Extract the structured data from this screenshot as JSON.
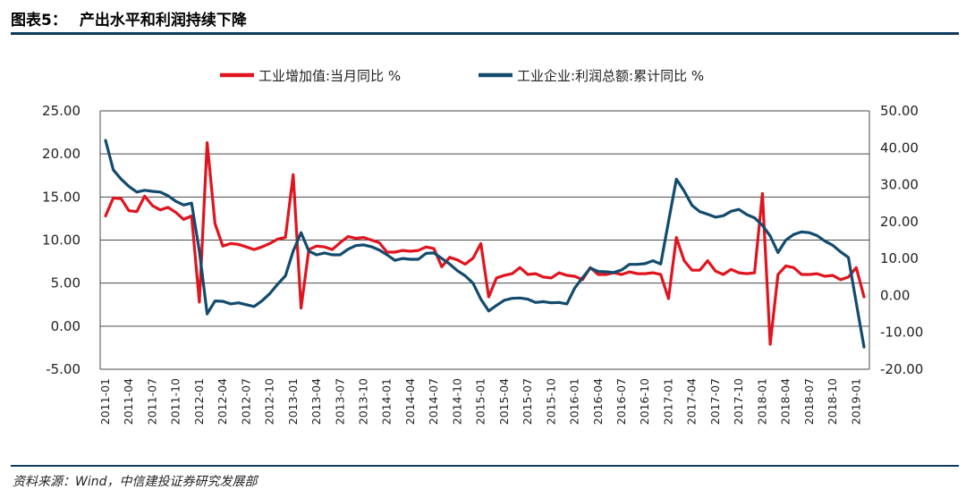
{
  "figure": {
    "label": "图表5：",
    "title": "产出水平和利润持续下降",
    "source": "资料来源：Wind，中信建投证券研究发展部"
  },
  "chart_data": {
    "type": "line",
    "legend_position": "top-center",
    "grid": "horizontal",
    "y_left": {
      "range": [
        -5,
        25
      ],
      "ticks": [
        "25.00",
        "20.00",
        "15.00",
        "10.00",
        "5.00",
        "0.00",
        "-5.00"
      ]
    },
    "y_right": {
      "range": [
        -20,
        50
      ],
      "ticks": [
        "50.00",
        "40.00",
        "30.00",
        "20.00",
        "10.00",
        "0.00",
        "-10.00",
        "-20.00"
      ]
    },
    "x_ticks": [
      "2011-01",
      "2011-04",
      "2011-07",
      "2011-10",
      "2012-01",
      "2012-04",
      "2012-07",
      "2012-10",
      "2013-01",
      "2013-04",
      "2013-07",
      "2013-10",
      "2014-01",
      "2014-04",
      "2014-07",
      "2014-10",
      "2015-01",
      "2015-04",
      "2015-07",
      "2015-10",
      "2016-01",
      "2016-04",
      "2016-07",
      "2016-10",
      "2017-01",
      "2017-04",
      "2017-07",
      "2017-10",
      "2018-01",
      "2018-04",
      "2018-07",
      "2018-10",
      "2019-01"
    ],
    "series": [
      {
        "name": "工业增加值:当月同比 %",
        "axis": "left",
        "color": "#e0141e",
        "points": [
          [
            "2011-01",
            12.8
          ],
          [
            "2011-02",
            14.9
          ],
          [
            "2011-03",
            14.8
          ],
          [
            "2011-04",
            13.4
          ],
          [
            "2011-05",
            13.3
          ],
          [
            "2011-06",
            15.1
          ],
          [
            "2011-07",
            14.0
          ],
          [
            "2011-08",
            13.5
          ],
          [
            "2011-09",
            13.8
          ],
          [
            "2011-10",
            13.2
          ],
          [
            "2011-11",
            12.4
          ],
          [
            "2011-12",
            12.8
          ],
          [
            "2012-01",
            2.8
          ],
          [
            "2012-02",
            21.3
          ],
          [
            "2012-03",
            11.9
          ],
          [
            "2012-04",
            9.3
          ],
          [
            "2012-05",
            9.6
          ],
          [
            "2012-06",
            9.5
          ],
          [
            "2012-07",
            9.2
          ],
          [
            "2012-08",
            8.9
          ],
          [
            "2012-09",
            9.2
          ],
          [
            "2012-10",
            9.6
          ],
          [
            "2012-11",
            10.1
          ],
          [
            "2012-12",
            10.3
          ],
          [
            "2013-01",
            17.6
          ],
          [
            "2013-02",
            2.1
          ],
          [
            "2013-03",
            8.9
          ],
          [
            "2013-04",
            9.3
          ],
          [
            "2013-05",
            9.2
          ],
          [
            "2013-06",
            8.9
          ],
          [
            "2013-07",
            9.7
          ],
          [
            "2013-08",
            10.4
          ],
          [
            "2013-09",
            10.2
          ],
          [
            "2013-10",
            10.3
          ],
          [
            "2013-11",
            10.0
          ],
          [
            "2013-12",
            9.7
          ],
          [
            "2014-01",
            8.6
          ],
          [
            "2014-02",
            8.6
          ],
          [
            "2014-03",
            8.8
          ],
          [
            "2014-04",
            8.7
          ],
          [
            "2014-05",
            8.8
          ],
          [
            "2014-06",
            9.2
          ],
          [
            "2014-07",
            9.0
          ],
          [
            "2014-08",
            6.9
          ],
          [
            "2014-09",
            8.0
          ],
          [
            "2014-10",
            7.7
          ],
          [
            "2014-11",
            7.2
          ],
          [
            "2014-12",
            7.9
          ],
          [
            "2015-01",
            9.6
          ],
          [
            "2015-02",
            3.4
          ],
          [
            "2015-03",
            5.6
          ],
          [
            "2015-04",
            5.9
          ],
          [
            "2015-05",
            6.1
          ],
          [
            "2015-06",
            6.8
          ],
          [
            "2015-07",
            6.0
          ],
          [
            "2015-08",
            6.1
          ],
          [
            "2015-09",
            5.7
          ],
          [
            "2015-10",
            5.6
          ],
          [
            "2015-11",
            6.2
          ],
          [
            "2015-12",
            5.9
          ],
          [
            "2016-01",
            5.8
          ],
          [
            "2016-02",
            5.4
          ],
          [
            "2016-03",
            6.8
          ],
          [
            "2016-04",
            6.0
          ],
          [
            "2016-05",
            6.0
          ],
          [
            "2016-06",
            6.2
          ],
          [
            "2016-07",
            6.0
          ],
          [
            "2016-08",
            6.3
          ],
          [
            "2016-09",
            6.1
          ],
          [
            "2016-10",
            6.1
          ],
          [
            "2016-11",
            6.2
          ],
          [
            "2016-12",
            6.0
          ],
          [
            "2017-01",
            3.2
          ],
          [
            "2017-02",
            10.3
          ],
          [
            "2017-03",
            7.6
          ],
          [
            "2017-04",
            6.5
          ],
          [
            "2017-05",
            6.5
          ],
          [
            "2017-06",
            7.6
          ],
          [
            "2017-07",
            6.4
          ],
          [
            "2017-08",
            6.0
          ],
          [
            "2017-09",
            6.6
          ],
          [
            "2017-10",
            6.2
          ],
          [
            "2017-11",
            6.1
          ],
          [
            "2017-12",
            6.2
          ],
          [
            "2018-01",
            15.4
          ],
          [
            "2018-02",
            -2.1
          ],
          [
            "2018-03",
            6.0
          ],
          [
            "2018-04",
            7.0
          ],
          [
            "2018-05",
            6.8
          ],
          [
            "2018-06",
            6.0
          ],
          [
            "2018-07",
            6.0
          ],
          [
            "2018-08",
            6.1
          ],
          [
            "2018-09",
            5.8
          ],
          [
            "2018-10",
            5.9
          ],
          [
            "2018-11",
            5.4
          ],
          [
            "2018-12",
            5.7
          ],
          [
            "2019-01",
            6.8
          ],
          [
            "2019-02",
            3.4
          ]
        ]
      },
      {
        "name": "工业企业:利润总额:累计同比 %",
        "axis": "right",
        "color": "#134b6e",
        "points": [
          [
            "2011-01",
            42.0
          ],
          [
            "2011-02",
            34.0
          ],
          [
            "2011-03",
            31.5
          ],
          [
            "2011-04",
            29.5
          ],
          [
            "2011-05",
            28.0
          ],
          [
            "2011-06",
            28.5
          ],
          [
            "2011-07",
            28.2
          ],
          [
            "2011-08",
            28.0
          ],
          [
            "2011-09",
            27.0
          ],
          [
            "2011-10",
            25.5
          ],
          [
            "2011-11",
            24.5
          ],
          [
            "2011-12",
            25.0
          ],
          [
            "2012-01",
            12.0
          ],
          [
            "2012-02",
            -5.0
          ],
          [
            "2012-03",
            -1.5
          ],
          [
            "2012-04",
            -1.6
          ],
          [
            "2012-05",
            -2.3
          ],
          [
            "2012-06",
            -2.0
          ],
          [
            "2012-07",
            -2.5
          ],
          [
            "2012-08",
            -3.0
          ],
          [
            "2012-09",
            -1.5
          ],
          [
            "2012-10",
            0.5
          ],
          [
            "2012-11",
            3.0
          ],
          [
            "2012-12",
            5.3
          ],
          [
            "2013-01",
            12.0
          ],
          [
            "2013-02",
            17.0
          ],
          [
            "2013-03",
            12.0
          ],
          [
            "2013-04",
            11.0
          ],
          [
            "2013-05",
            11.5
          ],
          [
            "2013-06",
            11.0
          ],
          [
            "2013-07",
            11.0
          ],
          [
            "2013-08",
            12.5
          ],
          [
            "2013-09",
            13.5
          ],
          [
            "2013-10",
            13.7
          ],
          [
            "2013-11",
            13.2
          ],
          [
            "2013-12",
            12.3
          ],
          [
            "2014-01",
            11.0
          ],
          [
            "2014-02",
            9.5
          ],
          [
            "2014-03",
            10.0
          ],
          [
            "2014-04",
            9.8
          ],
          [
            "2014-05",
            9.8
          ],
          [
            "2014-06",
            11.4
          ],
          [
            "2014-07",
            11.5
          ],
          [
            "2014-08",
            10.0
          ],
          [
            "2014-09",
            8.5
          ],
          [
            "2014-10",
            6.7
          ],
          [
            "2014-11",
            5.3
          ],
          [
            "2014-12",
            3.3
          ],
          [
            "2015-01",
            -1.0
          ],
          [
            "2015-02",
            -4.2
          ],
          [
            "2015-03",
            -2.7
          ],
          [
            "2015-04",
            -1.3
          ],
          [
            "2015-05",
            -0.8
          ],
          [
            "2015-06",
            -0.7
          ],
          [
            "2015-07",
            -1.0
          ],
          [
            "2015-08",
            -1.9
          ],
          [
            "2015-09",
            -1.7
          ],
          [
            "2015-10",
            -2.0
          ],
          [
            "2015-11",
            -1.9
          ],
          [
            "2015-12",
            -2.3
          ],
          [
            "2016-01",
            2.0
          ],
          [
            "2016-02",
            4.8
          ],
          [
            "2016-03",
            7.4
          ],
          [
            "2016-04",
            6.5
          ],
          [
            "2016-05",
            6.4
          ],
          [
            "2016-06",
            6.2
          ],
          [
            "2016-07",
            6.9
          ],
          [
            "2016-08",
            8.4
          ],
          [
            "2016-09",
            8.4
          ],
          [
            "2016-10",
            8.6
          ],
          [
            "2016-11",
            9.4
          ],
          [
            "2016-12",
            8.5
          ],
          [
            "2017-01",
            20.0
          ],
          [
            "2017-02",
            31.5
          ],
          [
            "2017-03",
            28.3
          ],
          [
            "2017-04",
            24.4
          ],
          [
            "2017-05",
            22.7
          ],
          [
            "2017-06",
            22.0
          ],
          [
            "2017-07",
            21.2
          ],
          [
            "2017-08",
            21.6
          ],
          [
            "2017-09",
            22.8
          ],
          [
            "2017-10",
            23.3
          ],
          [
            "2017-11",
            21.9
          ],
          [
            "2017-12",
            21.0
          ],
          [
            "2018-01",
            19.0
          ],
          [
            "2018-02",
            16.1
          ],
          [
            "2018-03",
            11.6
          ],
          [
            "2018-04",
            15.0
          ],
          [
            "2018-05",
            16.5
          ],
          [
            "2018-06",
            17.2
          ],
          [
            "2018-07",
            17.0
          ],
          [
            "2018-08",
            16.2
          ],
          [
            "2018-09",
            14.7
          ],
          [
            "2018-10",
            13.6
          ],
          [
            "2018-11",
            11.8
          ],
          [
            "2018-12",
            10.3
          ],
          [
            "2019-01",
            -2.0
          ],
          [
            "2019-02",
            -14.0
          ]
        ]
      }
    ]
  }
}
